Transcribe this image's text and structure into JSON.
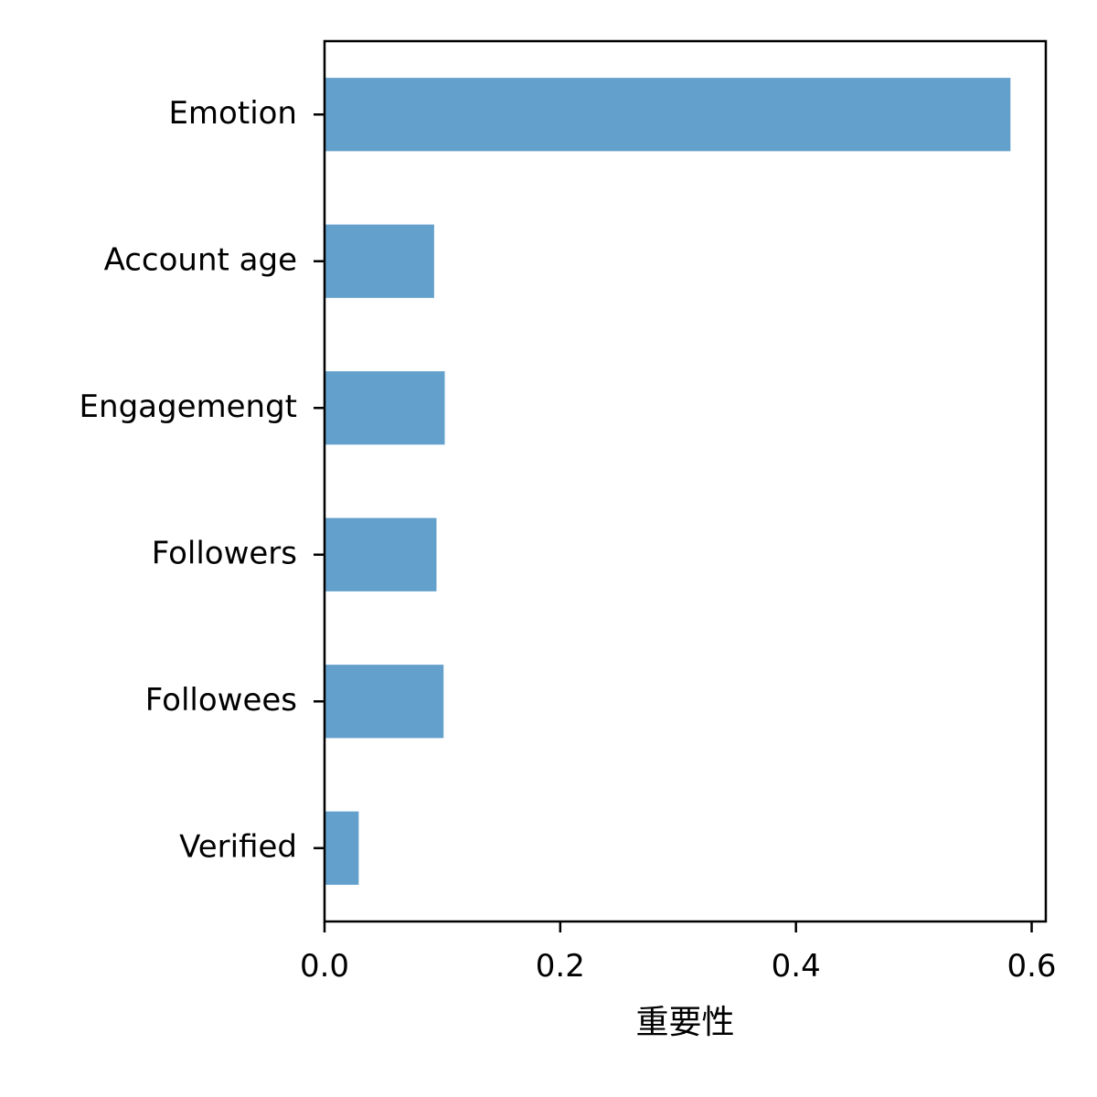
{
  "chart_data": {
    "type": "bar",
    "orientation": "horizontal",
    "categories": [
      "Emotion",
      "Account age",
      "Engagemengt",
      "Followers",
      "Followees",
      "Verified"
    ],
    "values": [
      0.582,
      0.093,
      0.102,
      0.095,
      0.101,
      0.029
    ],
    "xlabel": "重要性",
    "ylabel": "",
    "xlim": [
      0.0,
      0.612
    ],
    "xticks": [
      "0.0",
      "0.2",
      "0.4",
      "0.6"
    ],
    "grid": false,
    "bar_color": "#63a0cb",
    "axis_color": "#000000"
  }
}
